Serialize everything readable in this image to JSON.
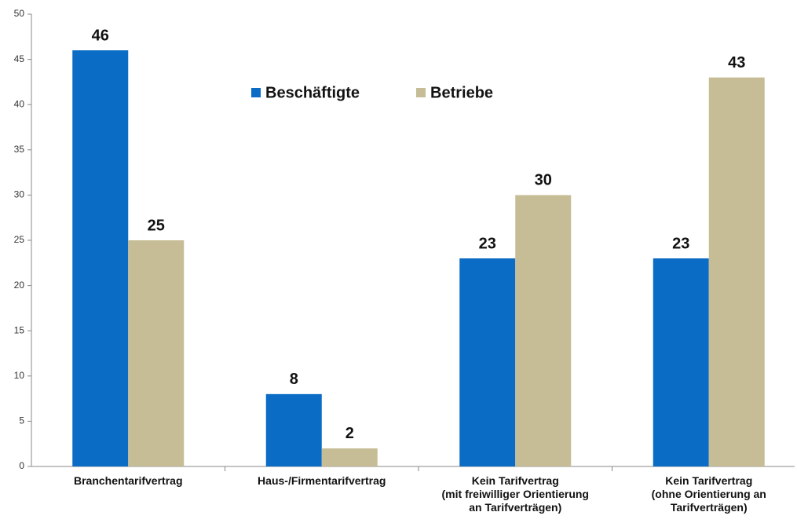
{
  "chart_data": {
    "type": "bar",
    "categories": [
      "Branchentarifvertrag",
      "Haus-/Firmentarifvertrag",
      "Kein Tarifvertrag\n(mit freiwilliger Orientierung\nan Tarifverträgen)",
      "Kein Tarifvertrag\n(ohne Orientierung an\nTarifverträgen)"
    ],
    "series": [
      {
        "name": "Beschäftigte",
        "color": "#0a6cc4",
        "values": [
          46,
          8,
          23,
          23
        ]
      },
      {
        "name": "Betriebe",
        "color": "#c6bd97",
        "values": [
          25,
          2,
          30,
          43
        ]
      }
    ],
    "ylim": [
      0,
      50
    ],
    "yticks": [
      0,
      5,
      10,
      15,
      20,
      25,
      30,
      35,
      40,
      45,
      50
    ],
    "grid": false,
    "legend": "top"
  }
}
